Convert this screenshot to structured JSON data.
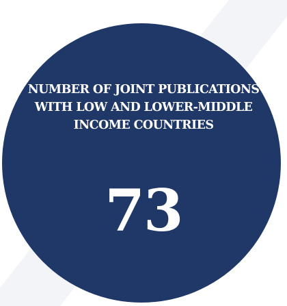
{
  "card": {
    "label": "NUMBER OF JOINT PUBLICATIONS WITH LOW AND LOWER-MIDDLE INCOME COUNTRIES",
    "value": "73"
  },
  "colors": {
    "circle": "#1f3868",
    "stripe": "#f3f4f7",
    "text": "#ffffff"
  }
}
